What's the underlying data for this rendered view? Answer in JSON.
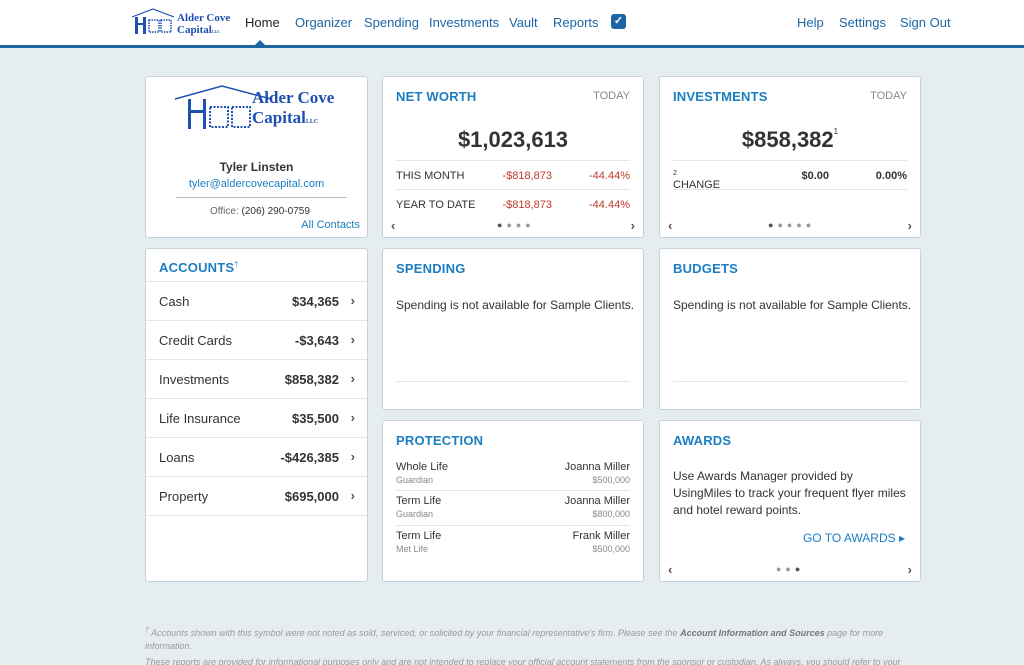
{
  "brand": {
    "line1": "Alder Cove",
    "line2": "Capital",
    "suffix": "LLC"
  },
  "nav": {
    "home": "Home",
    "organizer": "Organizer",
    "spending": "Spending",
    "investments": "Investments",
    "vault": "Vault",
    "reports": "Reports",
    "check_icon": "checkbox-icon",
    "help": "Help",
    "settings": "Settings",
    "sign_out": "Sign Out"
  },
  "profile": {
    "name": "Tyler Linsten",
    "email": "tyler@aldercovecapital.com",
    "office_label": "Office:",
    "office_phone": "(206) 290-0759",
    "all_contacts": "All Contacts"
  },
  "net_worth": {
    "title": "NET WORTH",
    "period": "TODAY",
    "value": "$1,023,613",
    "rows": [
      {
        "label": "THIS MONTH",
        "amount": "-$818,873",
        "pct": "-44.44%"
      },
      {
        "label": "YEAR TO DATE",
        "amount": "-$818,873",
        "pct": "-44.44%"
      }
    ]
  },
  "investments": {
    "title": "INVESTMENTS",
    "period": "TODAY",
    "value": "$858,382",
    "value_sup": "1",
    "change_label": "CHANGE",
    "change_sup": "2",
    "change_amount": "$0.00",
    "change_pct": "0.00%"
  },
  "accounts": {
    "title": "ACCOUNTS",
    "title_sup": "†",
    "items": [
      {
        "label": "Cash",
        "value": "$34,365"
      },
      {
        "label": "Credit Cards",
        "value": "-$3,643"
      },
      {
        "label": "Investments",
        "value": "$858,382"
      },
      {
        "label": "Life Insurance",
        "value": "$35,500"
      },
      {
        "label": "Loans",
        "value": "-$426,385"
      },
      {
        "label": "Property",
        "value": "$695,000"
      }
    ]
  },
  "spending": {
    "title": "SPENDING",
    "message": "Spending is not available for Sample Clients."
  },
  "budgets": {
    "title": "BUDGETS",
    "message": "Spending is not available for Sample Clients."
  },
  "protection": {
    "title": "PROTECTION",
    "items": [
      {
        "type": "Whole Life",
        "carrier": "Guardian",
        "insured": "Joanna Miller",
        "amount": "$500,000"
      },
      {
        "type": "Term Life",
        "carrier": "Guardian",
        "insured": "Joanna Miller",
        "amount": "$800,000"
      },
      {
        "type": "Term Life",
        "carrier": "Met Life",
        "insured": "Frank Miller",
        "amount": "$500,000"
      }
    ]
  },
  "awards": {
    "title": "AWARDS",
    "message": "Use Awards Manager provided by UsingMiles to track your frequent flyer miles and hotel reward points.",
    "link": "GO TO AWARDS ▸"
  },
  "footer": {
    "note1_sym": "†",
    "note1_a": "Accounts shown with this symbol were not noted as sold, serviced, or solicited by your financial representative's firm. Please see the",
    "note1_link": "Account Information and Sources",
    "note1_b": "page for more information.",
    "note2": "These reports are provided for informational purposes only and are not intended to replace your official account statements from the sponsor or custodian. As always, you should refer to your"
  }
}
